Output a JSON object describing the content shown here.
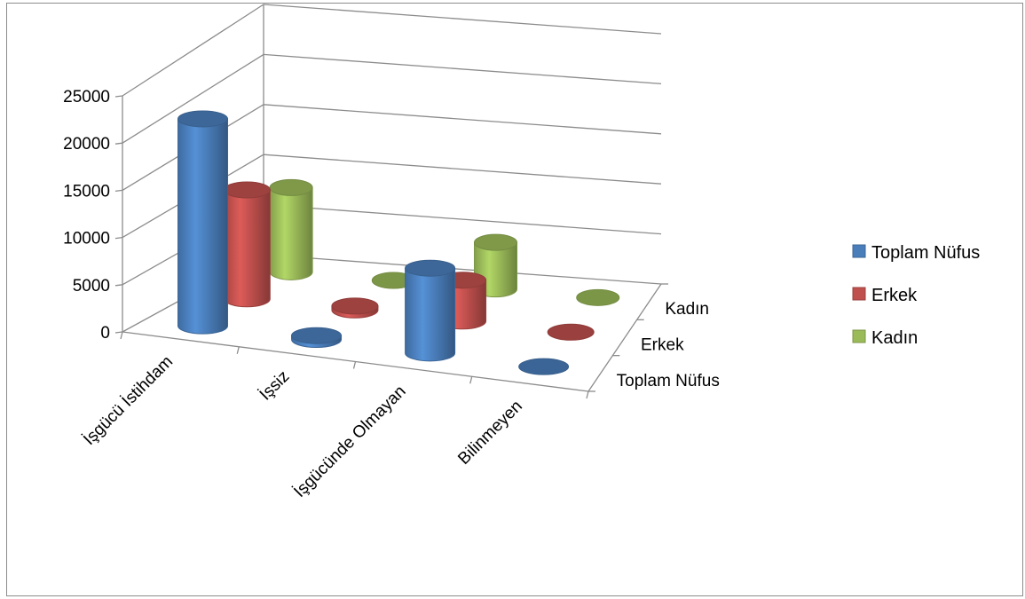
{
  "chart_data": {
    "type": "bar",
    "categories": [
      "İşgücü İstihdam",
      "İşsiz",
      "İşgücünde Olmayan",
      "Bilinmeyen"
    ],
    "series": [
      {
        "name": "Toplam Nüfus",
        "color": "#4a7ebb",
        "values": [
          21700,
          400,
          8900,
          0
        ]
      },
      {
        "name": "Erkek",
        "color": "#c0504d",
        "values": [
          11200,
          400,
          4200,
          0
        ]
      },
      {
        "name": "Kadın",
        "color": "#9bbb59",
        "values": [
          8500,
          0,
          4700,
          0
        ]
      }
    ],
    "depth_labels": [
      "Toplam Nüfus",
      "Erkek",
      "Kadın"
    ],
    "y_ticks": [
      "0",
      "5000",
      "10000",
      "15000",
      "20000",
      "25000"
    ],
    "ylim": [
      0,
      25000
    ],
    "legend_position": "right",
    "grid": true
  }
}
